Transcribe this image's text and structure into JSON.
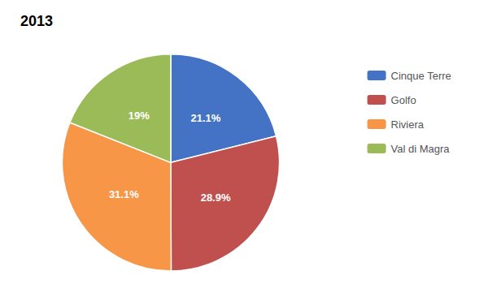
{
  "chart_data": {
    "type": "pie",
    "title": "2013",
    "categories": [
      "Cinque Terre",
      "Golfo",
      "Riviera",
      "Val di Magra"
    ],
    "values": [
      21.1,
      28.9,
      31.1,
      19.0
    ],
    "value_labels": [
      "21.1%",
      "28.9%",
      "31.1%",
      "19%"
    ],
    "colors": [
      "#4472C4",
      "#C0504D",
      "#F79646",
      "#9BBB59"
    ],
    "data_labels": true,
    "legend": "upper right"
  }
}
